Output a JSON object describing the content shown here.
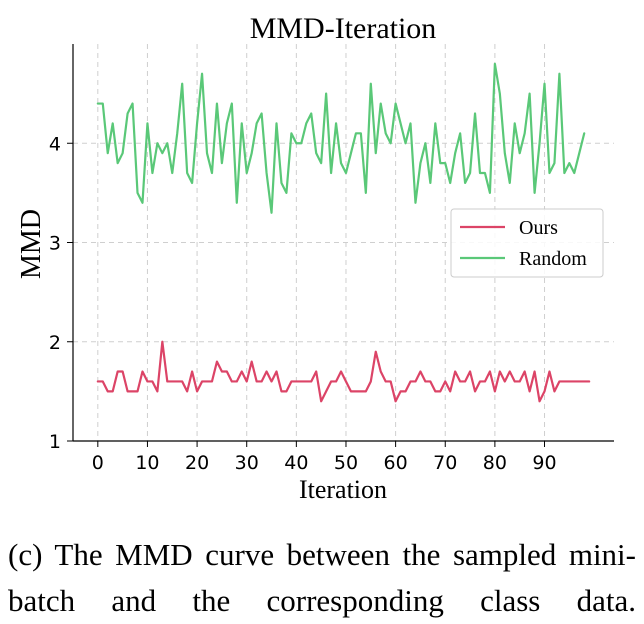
{
  "chart_data": {
    "type": "line",
    "title": "MMD-Iteration",
    "xlabel": "Iteration",
    "ylabel": "MMD",
    "xlim": [
      -5,
      104
    ],
    "ylim": [
      1,
      5
    ],
    "xticks": [
      0,
      10,
      20,
      30,
      40,
      50,
      60,
      70,
      80,
      90
    ],
    "yticks": [
      1,
      2,
      3,
      4
    ],
    "grid": true,
    "legend_position": "center-right",
    "series": [
      {
        "name": "Ours",
        "color": "#dc4467",
        "x_start": 0,
        "values": [
          1.6,
          1.6,
          1.5,
          1.5,
          1.7,
          1.7,
          1.5,
          1.5,
          1.5,
          1.7,
          1.6,
          1.6,
          1.5,
          2.0,
          1.6,
          1.6,
          1.6,
          1.6,
          1.5,
          1.7,
          1.5,
          1.6,
          1.6,
          1.6,
          1.8,
          1.7,
          1.7,
          1.6,
          1.6,
          1.7,
          1.6,
          1.8,
          1.6,
          1.6,
          1.7,
          1.6,
          1.7,
          1.5,
          1.5,
          1.6,
          1.6,
          1.6,
          1.6,
          1.6,
          1.7,
          1.4,
          1.5,
          1.6,
          1.6,
          1.7,
          1.6,
          1.5,
          1.5,
          1.5,
          1.5,
          1.6,
          1.9,
          1.7,
          1.6,
          1.6,
          1.4,
          1.5,
          1.5,
          1.6,
          1.6,
          1.7,
          1.6,
          1.6,
          1.5,
          1.5,
          1.6,
          1.5,
          1.7,
          1.6,
          1.6,
          1.7,
          1.5,
          1.6,
          1.6,
          1.7,
          1.5,
          1.7,
          1.6,
          1.7,
          1.6,
          1.6,
          1.7,
          1.5,
          1.7,
          1.4,
          1.5,
          1.7,
          1.5,
          1.6,
          1.6,
          1.6,
          1.6,
          1.6,
          1.6,
          1.6
        ]
      },
      {
        "name": "Random",
        "color": "#5ac878",
        "x_start": 0,
        "values": [
          4.4,
          4.4,
          3.9,
          4.2,
          3.8,
          3.9,
          4.3,
          4.4,
          3.5,
          3.4,
          4.2,
          3.7,
          4.0,
          3.9,
          4.0,
          3.7,
          4.1,
          4.6,
          3.7,
          3.6,
          4.2,
          4.7,
          3.9,
          3.7,
          4.4,
          3.8,
          4.2,
          4.4,
          3.4,
          4.2,
          3.7,
          3.9,
          4.2,
          4.3,
          3.7,
          3.3,
          4.2,
          3.6,
          3.5,
          4.1,
          4.0,
          4.0,
          4.2,
          4.3,
          3.9,
          3.8,
          4.5,
          3.7,
          4.2,
          3.8,
          3.7,
          3.9,
          4.1,
          4.1,
          3.5,
          4.6,
          3.9,
          4.4,
          4.1,
          4.0,
          4.4,
          4.2,
          4.0,
          4.2,
          3.4,
          3.8,
          4.0,
          3.6,
          4.2,
          3.8,
          3.8,
          3.6,
          3.9,
          4.1,
          3.6,
          3.7,
          4.3,
          3.7,
          3.7,
          3.5,
          4.8,
          4.5,
          3.9,
          3.6,
          4.2,
          3.9,
          4.1,
          4.5,
          3.5,
          4.0,
          4.6,
          3.7,
          3.8,
          4.7,
          3.7,
          3.8,
          3.7,
          3.9,
          4.1
        ]
      }
    ]
  },
  "caption": "(c) The MMD curve between the sampled mini-batch and the corresponding class data."
}
